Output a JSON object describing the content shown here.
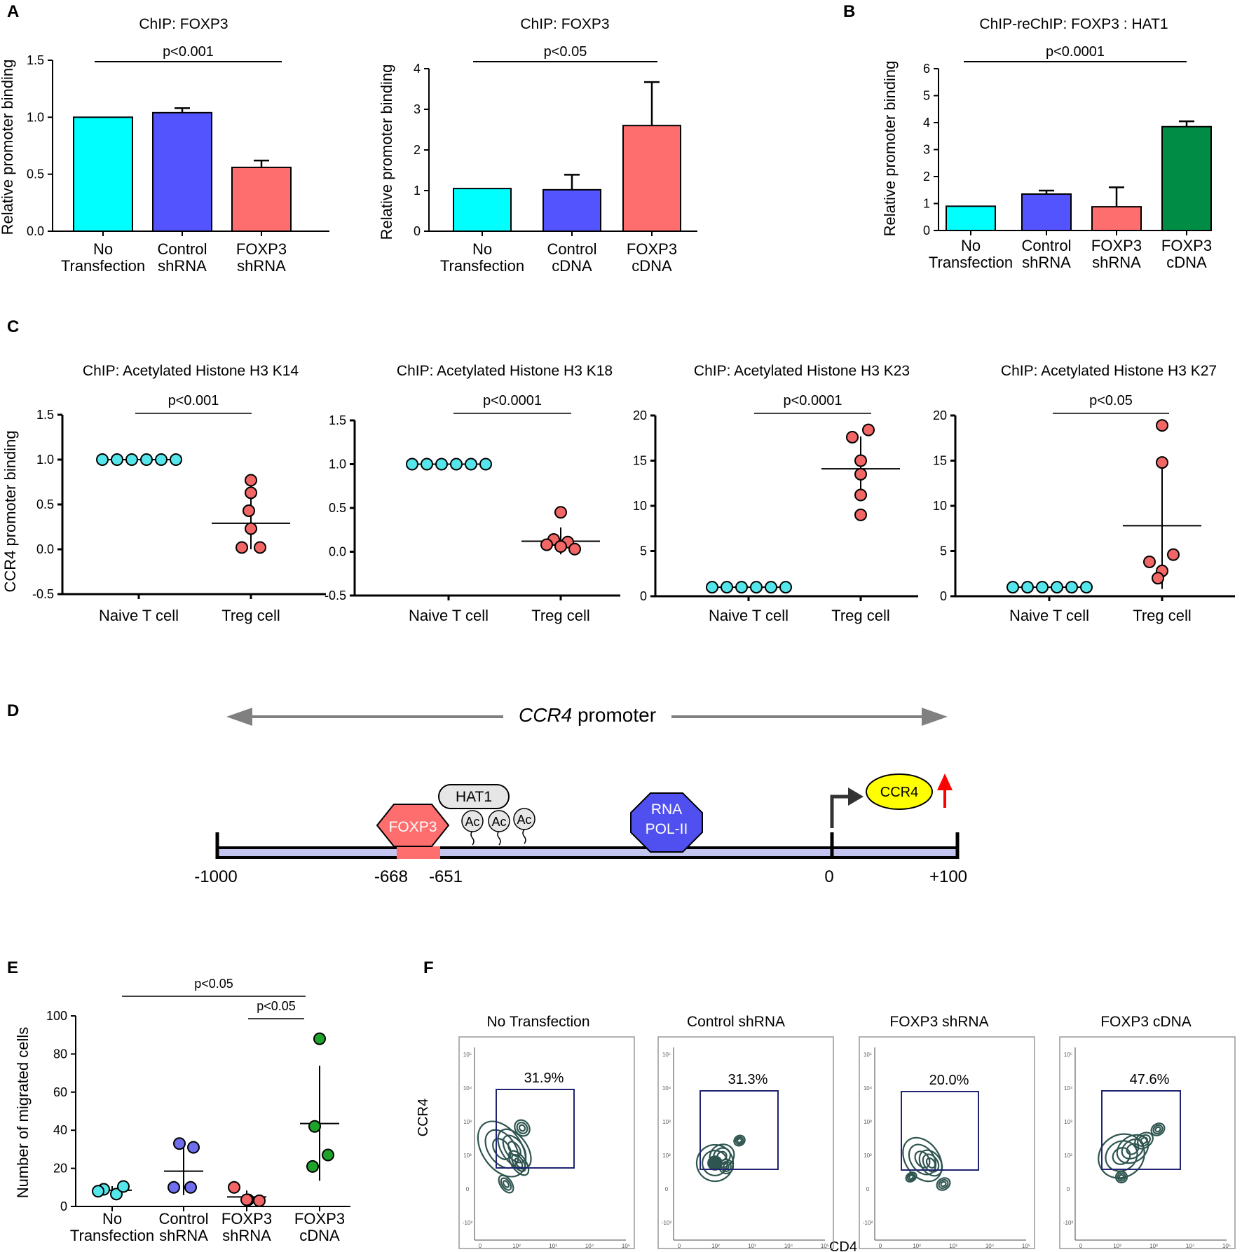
{
  "panel_labels": {
    "a": "A",
    "b": "B",
    "c": "C",
    "d": "D",
    "e": "E",
    "f": "F"
  },
  "colors": {
    "cyan": "#00FFFF",
    "blue": "#5454FF",
    "salmon": "#FF6E6E",
    "green": "#008C45",
    "dot_cyan": "#55E6EC",
    "dot_blue": "#6E6EEE",
    "dot_salmon": "#F26666",
    "dot_green": "#1DA32C",
    "promoter_bar": "#C4C4F0",
    "hat1": "#E6E6E6",
    "polii": "#5050F0",
    "ccr4_gene": "#FFFF00",
    "arrow_grey": "#808080",
    "arrow_red": "#FF0000",
    "contour": "#2F5550",
    "gate": "#1F2370"
  },
  "chart_data": [
    {
      "id": "A1",
      "type": "bar",
      "title": "ChIP: FOXP3",
      "ylabel": "Relative promoter binding",
      "xlabel": "",
      "ylim": [
        0,
        1.5
      ],
      "yticks": [
        "0.0",
        "0.5",
        "1.0",
        "1.5"
      ],
      "categories": [
        [
          "No",
          "Transfection"
        ],
        [
          "Control",
          "shRNA"
        ],
        [
          "FOXP3",
          "shRNA"
        ]
      ],
      "values": [
        1.0,
        1.04,
        0.56
      ],
      "errors": [
        0,
        0.04,
        0.06
      ],
      "bar_colors": [
        "cyan",
        "blue",
        "salmon"
      ],
      "annotation": {
        "text": "p<0.001",
        "from": 0,
        "to": 2
      }
    },
    {
      "id": "A2",
      "type": "bar",
      "title": "ChIP: FOXP3",
      "ylabel": "Relative promoter binding",
      "xlabel": "",
      "ylim": [
        0,
        4
      ],
      "yticks": [
        "0",
        "1",
        "2",
        "3",
        "4"
      ],
      "categories": [
        [
          "No",
          "Transfection"
        ],
        [
          "Control",
          "cDNA"
        ],
        [
          "FOXP3",
          "cDNA"
        ]
      ],
      "values": [
        1.05,
        1.02,
        2.6
      ],
      "errors": [
        0,
        0.37,
        1.07
      ],
      "bar_colors": [
        "cyan",
        "blue",
        "salmon"
      ],
      "annotation": {
        "text": "p<0.05",
        "from": 0,
        "to": 2
      }
    },
    {
      "id": "B",
      "type": "bar",
      "title": "ChIP-reChIP: FOXP3 : HAT1",
      "ylabel": "Relative promoter binding",
      "xlabel": "",
      "ylim": [
        0,
        6
      ],
      "yticks": [
        "0",
        "1",
        "2",
        "3",
        "4",
        "5",
        "6"
      ],
      "categories": [
        [
          "No",
          "Transfection"
        ],
        [
          "Control",
          "shRNA"
        ],
        [
          "FOXP3",
          "shRNA"
        ],
        [
          "FOXP3",
          "cDNA"
        ]
      ],
      "values": [
        0.9,
        1.35,
        0.88,
        3.85
      ],
      "errors": [
        0,
        0.13,
        0.72,
        0.2
      ],
      "bar_colors": [
        "cyan",
        "blue",
        "salmon",
        "green"
      ],
      "annotation": {
        "text": "p<0.0001",
        "from": 0,
        "to": 3
      }
    },
    {
      "id": "C1",
      "type": "scatter",
      "title": "ChIP: Acetylated Histone H3 K14",
      "ylabel": "CCR4 promoter binding",
      "xlabel": "",
      "ylim": [
        -0.5,
        1.5
      ],
      "yticks": [
        "-0.5",
        "0.0",
        "0.5",
        "1.0",
        "1.5"
      ],
      "categories": [
        "Naive T cell",
        "Treg cell"
      ],
      "series": [
        {
          "name": "Naive T cell",
          "values": [
            1,
            1,
            1,
            1,
            1,
            1
          ],
          "mean": 1.0,
          "sd": 0,
          "color": "dot_cyan"
        },
        {
          "name": "Treg cell",
          "values": [
            0.77,
            0.63,
            0.43,
            0.23,
            0.02,
            0.02
          ],
          "mean": 0.29,
          "sd": 0.29,
          "color": "dot_salmon"
        }
      ],
      "annotation": {
        "text": "p<0.001"
      }
    },
    {
      "id": "C2",
      "type": "scatter",
      "title": "ChIP: Acetylated Histone H3 K18",
      "ylabel": "",
      "xlabel": "",
      "ylim": [
        -0.5,
        1.5
      ],
      "yticks": [
        "-0.5",
        "0.0",
        "0.5",
        "1.0",
        "1.5"
      ],
      "categories": [
        "Naive T cell",
        "Treg cell"
      ],
      "series": [
        {
          "name": "Naive T cell",
          "values": [
            1,
            1,
            1,
            1,
            1,
            1
          ],
          "mean": 1.0,
          "sd": 0,
          "color": "dot_cyan"
        },
        {
          "name": "Treg cell",
          "values": [
            0.45,
            0.14,
            0.11,
            0.08,
            0.06,
            0.03
          ],
          "mean": 0.12,
          "sd": 0.15,
          "color": "dot_salmon"
        }
      ],
      "annotation": {
        "text": "p<0.0001"
      }
    },
    {
      "id": "C3",
      "type": "scatter",
      "title": "ChIP: Acetylated Histone H3 K23",
      "ylabel": "",
      "xlabel": "",
      "ylim": [
        0,
        20
      ],
      "yticks": [
        "0",
        "5",
        "10",
        "15",
        "20"
      ],
      "categories": [
        "Naive T cell",
        "Treg cell"
      ],
      "series": [
        {
          "name": "Naive T cell",
          "values": [
            1,
            1,
            1,
            1,
            1,
            1
          ],
          "mean": 1.0,
          "sd": 0,
          "color": "dot_cyan"
        },
        {
          "name": "Treg cell",
          "values": [
            18.4,
            17.6,
            15.0,
            13.5,
            11.2,
            9.0
          ],
          "mean": 14.1,
          "sd": 3.5,
          "color": "dot_salmon"
        }
      ],
      "annotation": {
        "text": "p<0.0001"
      }
    },
    {
      "id": "C4",
      "type": "scatter",
      "title": "ChIP: Acetylated Histone H3 K27",
      "ylabel": "",
      "xlabel": "",
      "ylim": [
        0,
        20
      ],
      "yticks": [
        "0",
        "5",
        "10",
        "15",
        "20"
      ],
      "categories": [
        "Naive T cell",
        "Treg cell"
      ],
      "series": [
        {
          "name": "Naive T cell",
          "values": [
            1,
            1,
            1,
            1,
            1,
            1
          ],
          "mean": 1.0,
          "sd": 0,
          "color": "dot_cyan"
        },
        {
          "name": "Treg cell",
          "values": [
            18.9,
            14.8,
            4.6,
            3.8,
            2.8,
            2.0
          ],
          "mean": 7.8,
          "sd": 7.0,
          "color": "dot_salmon"
        }
      ],
      "annotation": {
        "text": "p<0.05"
      }
    },
    {
      "id": "E",
      "type": "scatter",
      "title": "",
      "ylabel": "Number of migrated cells",
      "xlabel": "",
      "ylim": [
        0,
        100
      ],
      "yticks": [
        "0",
        "20",
        "40",
        "60",
        "80",
        "100"
      ],
      "categories": [
        [
          "No",
          "Transfection"
        ],
        [
          "Control",
          "shRNA"
        ],
        [
          "FOXP3",
          "shRNA"
        ],
        [
          "FOXP3",
          "cDNA"
        ]
      ],
      "series": [
        {
          "name": "No Transfection",
          "values": [
            9,
            6.5,
            8,
            10.5
          ],
          "mean": 8.5,
          "sd": 1.8,
          "color": "dot_cyan"
        },
        {
          "name": "Control shRNA",
          "values": [
            33,
            31,
            10,
            10
          ],
          "mean": 18.5,
          "sd": 12.5,
          "color": "dot_blue"
        },
        {
          "name": "FOXP3 shRNA",
          "values": [
            10,
            3.5,
            3,
            3.5
          ],
          "mean": 5,
          "sd": 3,
          "color": "dot_salmon"
        },
        {
          "name": "FOXP3 cDNA",
          "values": [
            88,
            42,
            27,
            21
          ],
          "mean": 43.5,
          "sd": 30,
          "color": "dot_green"
        }
      ],
      "annotations": [
        {
          "text": "p<0.05",
          "from": 0,
          "to": 3
        },
        {
          "text": "p<0.05",
          "from": 2,
          "to": 3
        }
      ]
    }
  ],
  "diagram": {
    "promoter_label_italic": "CCR4",
    "promoter_label_rest": " promoter",
    "foxp3": "FOXP3",
    "hat1": "HAT1",
    "ac": [
      "Ac",
      "Ac",
      "Ac"
    ],
    "polii_line1": "RNA",
    "polii_line2": "POL-II",
    "ccr4_gene": "CCR4",
    "positions": [
      "-1000",
      "-668",
      "-651",
      "0",
      "+100"
    ]
  },
  "flow": {
    "ylabel": "CCR4",
    "xlabel": "CD4",
    "panels": [
      {
        "title": "No Transfection",
        "pct": "31.9%"
      },
      {
        "title": "Control shRNA",
        "pct": "31.3%"
      },
      {
        "title": "FOXP3 shRNA",
        "pct": "20.0%"
      },
      {
        "title": "FOXP3 cDNA",
        "pct": "47.6%"
      }
    ],
    "x_ticks": [
      "0",
      "10²",
      "10³",
      "10⁴",
      "10⁵"
    ],
    "y_ticks": [
      "10⁵",
      "10⁴",
      "10³",
      "10²",
      "0",
      "-10²"
    ]
  }
}
